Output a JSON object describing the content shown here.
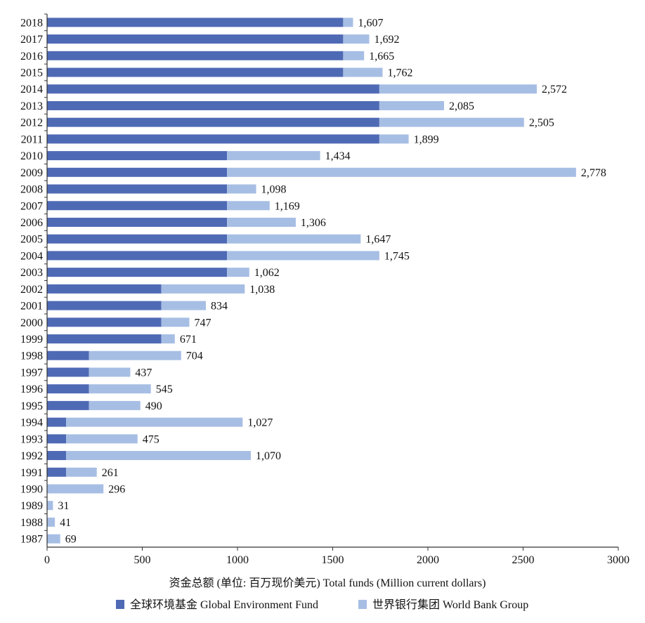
{
  "chart_data": {
    "type": "bar",
    "orientation": "horizontal",
    "stacked": true,
    "categories": [
      "2018",
      "2017",
      "2016",
      "2015",
      "2014",
      "2013",
      "2012",
      "2011",
      "2010",
      "2009",
      "2008",
      "2007",
      "2006",
      "2005",
      "2004",
      "2003",
      "2002",
      "2001",
      "2000",
      "1999",
      "1998",
      "1997",
      "1996",
      "1995",
      "1994",
      "1993",
      "1992",
      "1991",
      "1990",
      "1989",
      "1988",
      "1987"
    ],
    "series": [
      {
        "name": "全球环境基金 Global Environment Fund",
        "color": "#4F6AB5",
        "values": [
          1555,
          1555,
          1555,
          1555,
          1745,
          1745,
          1745,
          1745,
          945,
          945,
          945,
          945,
          945,
          945,
          945,
          945,
          600,
          600,
          600,
          600,
          220,
          220,
          220,
          220,
          100,
          100,
          100,
          100,
          0,
          0,
          0,
          0
        ]
      },
      {
        "name": "世界银行集团 World Bank Group",
        "color": "#A7BEE4",
        "values": [
          52,
          137,
          110,
          207,
          827,
          340,
          760,
          154,
          489,
          1833,
          153,
          224,
          361,
          702,
          800,
          117,
          438,
          234,
          147,
          71,
          484,
          217,
          325,
          270,
          927,
          375,
          970,
          161,
          296,
          31,
          41,
          69
        ]
      }
    ],
    "totals_labels": [
      "1,607",
      "1,692",
      "1,665",
      "1,762",
      "2,572",
      "2,085",
      "2,505",
      "1,899",
      "1,434",
      "2,778",
      "1,098",
      "1,169",
      "1,306",
      "1,647",
      "1,745",
      "1,062",
      "1,038",
      "834",
      "747",
      "671",
      "704",
      "437",
      "545",
      "490",
      "1,027",
      "475",
      "1,070",
      "261",
      "296",
      "31",
      "41",
      "69"
    ],
    "xlim": [
      0,
      3000
    ],
    "xticks": [
      0,
      500,
      1000,
      1500,
      2000,
      2500,
      3000
    ],
    "xlabel": "资金总额 (单位: 百万现价美元)     Total funds (Million current dollars)",
    "legend_position": "bottom",
    "grid": false
  }
}
